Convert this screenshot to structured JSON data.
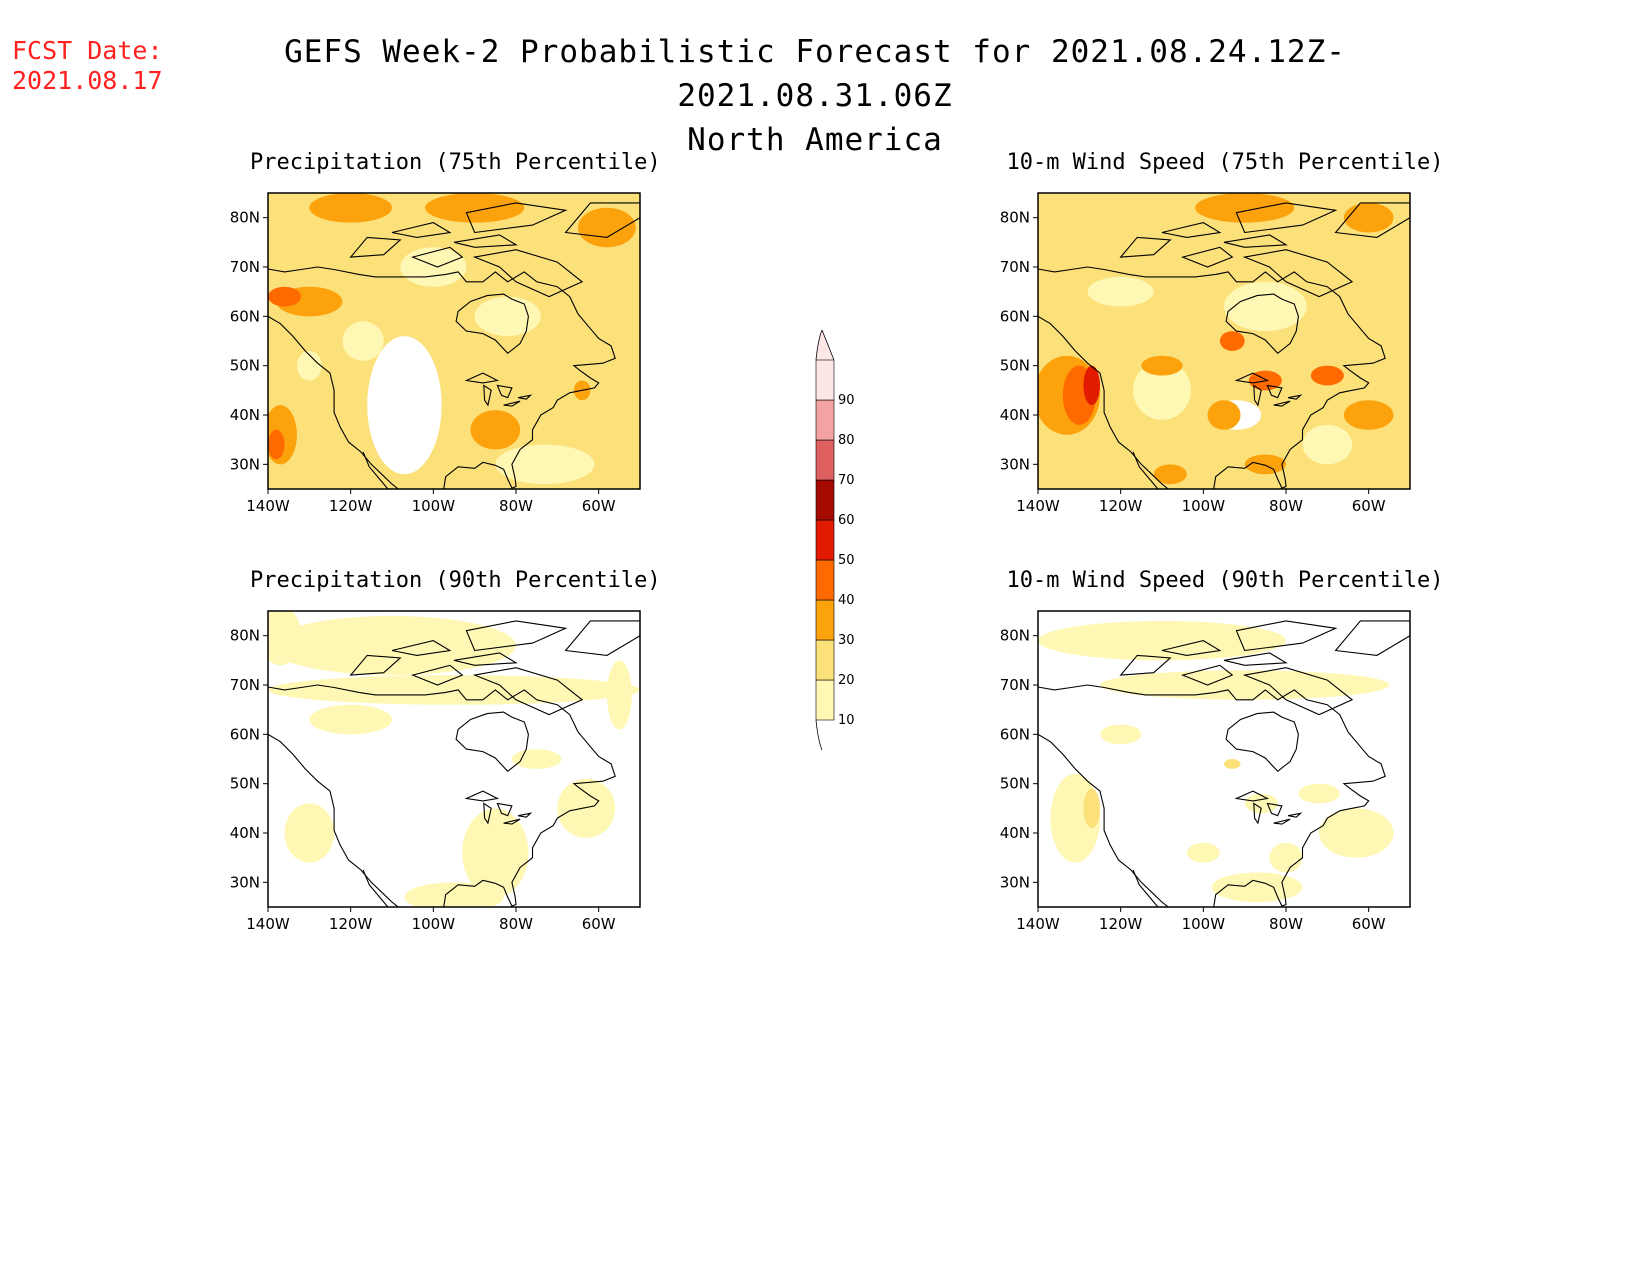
{
  "header": {
    "fcst_label": "FCST Date:",
    "fcst_date": "2021.08.17",
    "title": "GEFS Week-2 Probabilistic Forecast for 2021.08.24.12Z-2021.08.31.06Z",
    "subtitle": "North America"
  },
  "panels": [
    {
      "title": "Precipitation (75th Percentile)",
      "variant": "p75"
    },
    {
      "title": "10-m Wind Speed (75th Percentile)",
      "variant": "w75"
    },
    {
      "title": "Precipitation (90th Percentile)",
      "variant": "p90"
    },
    {
      "title": "10-m Wind Speed (90th Percentile)",
      "variant": "w90"
    }
  ],
  "axes": {
    "lon_labels": [
      "140W",
      "120W",
      "100W",
      "80W",
      "60W"
    ],
    "lat_labels": [
      "80N",
      "70N",
      "60N",
      "50N",
      "40N",
      "30N"
    ]
  },
  "colorbar": {
    "levels": [
      "10",
      "20",
      "30",
      "40",
      "50",
      "60",
      "70",
      "80",
      "90"
    ],
    "colors": [
      "#fff8b4",
      "#fce07a",
      "#fba20d",
      "#ff6a00",
      "#e21a00",
      "#a40a00",
      "#e06060",
      "#f4a3a3",
      "#fde6e6"
    ]
  }
}
